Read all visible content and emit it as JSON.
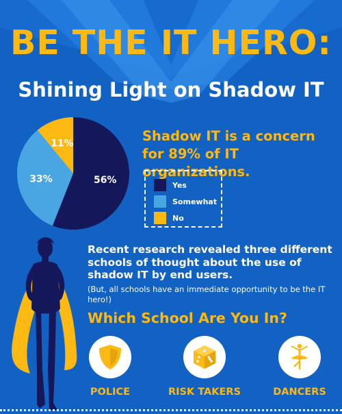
{
  "header": {
    "title": "BE THE IT HERO:",
    "subtitle": "Shining Light on Shadow IT"
  },
  "colors": {
    "yes": "#14175a",
    "somewhat": "#4aa6e2",
    "no": "#fdb913",
    "background": "#1262c4",
    "accent": "#fdb913"
  },
  "chart_data": {
    "type": "pie",
    "categories": [
      "Yes",
      "Somewhat",
      "No"
    ],
    "values": [
      56,
      33,
      11
    ],
    "value_labels": [
      "56%",
      "33%",
      "11%"
    ],
    "legend": "right"
  },
  "headline": "Shadow IT is a concern for 89% of IT organizations.",
  "legend": {
    "items": [
      {
        "label": "Yes"
      },
      {
        "label": "Somewhat"
      },
      {
        "label": "No"
      }
    ]
  },
  "research": {
    "text": "Recent research revealed three different schools of thought about the use of shadow IT by end users.",
    "note": "(But, all schools have an immediate opportunity to be the IT hero!)"
  },
  "schools": {
    "question": "Which School Are You In?",
    "items": [
      {
        "label": "POLICE",
        "icon": "shield-icon"
      },
      {
        "label": "RISK TAKERS",
        "icon": "dice-icon"
      },
      {
        "label": "DANCERS",
        "icon": "ballerina-icon"
      }
    ]
  }
}
